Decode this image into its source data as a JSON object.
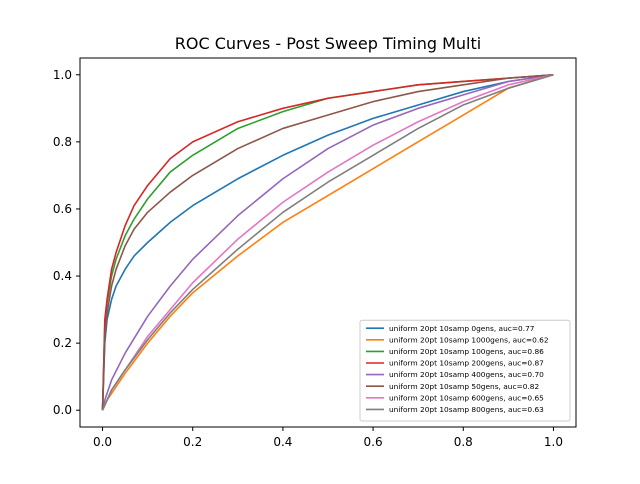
{
  "chart_data": {
    "type": "line",
    "title": "ROC Curves - Post Sweep Timing Multi",
    "xlabel": "",
    "ylabel": "",
    "xlim": [
      -0.05,
      1.05
    ],
    "ylim": [
      -0.05,
      1.05
    ],
    "x_ticks": [
      0.0,
      0.2,
      0.4,
      0.6,
      0.8,
      1.0
    ],
    "y_ticks": [
      0.0,
      0.2,
      0.4,
      0.6,
      0.8,
      1.0
    ],
    "x_tick_labels": [
      "0.0",
      "0.2",
      "0.4",
      "0.6",
      "0.8",
      "1.0"
    ],
    "y_tick_labels": [
      "0.0",
      "0.2",
      "0.4",
      "0.6",
      "0.8",
      "1.0"
    ],
    "grid": false,
    "legend_position": "lower-right",
    "series": [
      {
        "name": "uniform 20pt 10samp 0gens, auc=0.77",
        "color": "#1f77b4",
        "x": [
          0,
          0.005,
          0.01,
          0.02,
          0.03,
          0.05,
          0.07,
          0.1,
          0.15,
          0.2,
          0.25,
          0.3,
          0.4,
          0.5,
          0.6,
          0.7,
          0.8,
          0.9,
          1.0
        ],
        "y": [
          0,
          0.2,
          0.27,
          0.33,
          0.37,
          0.42,
          0.46,
          0.5,
          0.56,
          0.61,
          0.65,
          0.69,
          0.76,
          0.82,
          0.87,
          0.91,
          0.95,
          0.98,
          1.0
        ]
      },
      {
        "name": "uniform 20pt 10samp 1000gens, auc=0.62",
        "color": "#ff7f0e",
        "x": [
          0,
          0.01,
          0.02,
          0.05,
          0.1,
          0.15,
          0.2,
          0.3,
          0.4,
          0.5,
          0.6,
          0.7,
          0.8,
          0.9,
          1.0
        ],
        "y": [
          0,
          0.03,
          0.05,
          0.11,
          0.2,
          0.28,
          0.35,
          0.46,
          0.56,
          0.64,
          0.72,
          0.8,
          0.88,
          0.96,
          1.0
        ]
      },
      {
        "name": "uniform 20pt 10samp 100gens, auc=0.86",
        "color": "#2ca02c",
        "x": [
          0,
          0.005,
          0.01,
          0.02,
          0.03,
          0.05,
          0.07,
          0.1,
          0.15,
          0.2,
          0.3,
          0.4,
          0.5,
          0.6,
          0.7,
          0.8,
          0.9,
          1.0
        ],
        "y": [
          0,
          0.25,
          0.32,
          0.4,
          0.45,
          0.52,
          0.57,
          0.63,
          0.71,
          0.76,
          0.84,
          0.89,
          0.93,
          0.95,
          0.97,
          0.98,
          0.99,
          1.0
        ]
      },
      {
        "name": "uniform 20pt 10samp 200gens, auc=0.87",
        "color": "#d62728",
        "x": [
          0,
          0.005,
          0.01,
          0.02,
          0.03,
          0.05,
          0.07,
          0.1,
          0.15,
          0.2,
          0.3,
          0.4,
          0.5,
          0.6,
          0.7,
          0.8,
          0.9,
          1.0
        ],
        "y": [
          0,
          0.27,
          0.33,
          0.42,
          0.47,
          0.55,
          0.61,
          0.67,
          0.75,
          0.8,
          0.86,
          0.9,
          0.93,
          0.95,
          0.97,
          0.98,
          0.99,
          1.0
        ]
      },
      {
        "name": "uniform 20pt 10samp 400gens, auc=0.70",
        "color": "#9467bd",
        "x": [
          0,
          0.005,
          0.01,
          0.02,
          0.05,
          0.1,
          0.15,
          0.2,
          0.3,
          0.4,
          0.5,
          0.6,
          0.7,
          0.8,
          0.9,
          1.0
        ],
        "y": [
          0,
          0.03,
          0.05,
          0.09,
          0.17,
          0.28,
          0.37,
          0.45,
          0.58,
          0.69,
          0.78,
          0.85,
          0.9,
          0.94,
          0.98,
          1.0
        ]
      },
      {
        "name": "uniform 20pt 10samp 50gens, auc=0.82",
        "color": "#8c564b",
        "x": [
          0,
          0.005,
          0.01,
          0.02,
          0.03,
          0.05,
          0.07,
          0.1,
          0.15,
          0.2,
          0.3,
          0.4,
          0.5,
          0.6,
          0.7,
          0.8,
          0.9,
          1.0
        ],
        "y": [
          0,
          0.22,
          0.29,
          0.37,
          0.42,
          0.49,
          0.54,
          0.59,
          0.65,
          0.7,
          0.78,
          0.84,
          0.88,
          0.92,
          0.95,
          0.97,
          0.99,
          1.0
        ]
      },
      {
        "name": "uniform 20pt 10samp 600gens, auc=0.65",
        "color": "#e377c2",
        "x": [
          0,
          0.01,
          0.02,
          0.05,
          0.1,
          0.15,
          0.2,
          0.3,
          0.4,
          0.5,
          0.6,
          0.7,
          0.8,
          0.9,
          1.0
        ],
        "y": [
          0,
          0.03,
          0.06,
          0.12,
          0.22,
          0.3,
          0.38,
          0.51,
          0.62,
          0.71,
          0.79,
          0.86,
          0.92,
          0.97,
          1.0
        ]
      },
      {
        "name": "uniform 20pt 10samp 800gens, auc=0.63",
        "color": "#7f7f7f",
        "x": [
          0,
          0.01,
          0.02,
          0.05,
          0.1,
          0.15,
          0.2,
          0.3,
          0.4,
          0.5,
          0.6,
          0.7,
          0.8,
          0.9,
          1.0
        ],
        "y": [
          0,
          0.03,
          0.06,
          0.12,
          0.21,
          0.29,
          0.36,
          0.48,
          0.59,
          0.68,
          0.76,
          0.84,
          0.91,
          0.96,
          1.0
        ]
      }
    ]
  }
}
